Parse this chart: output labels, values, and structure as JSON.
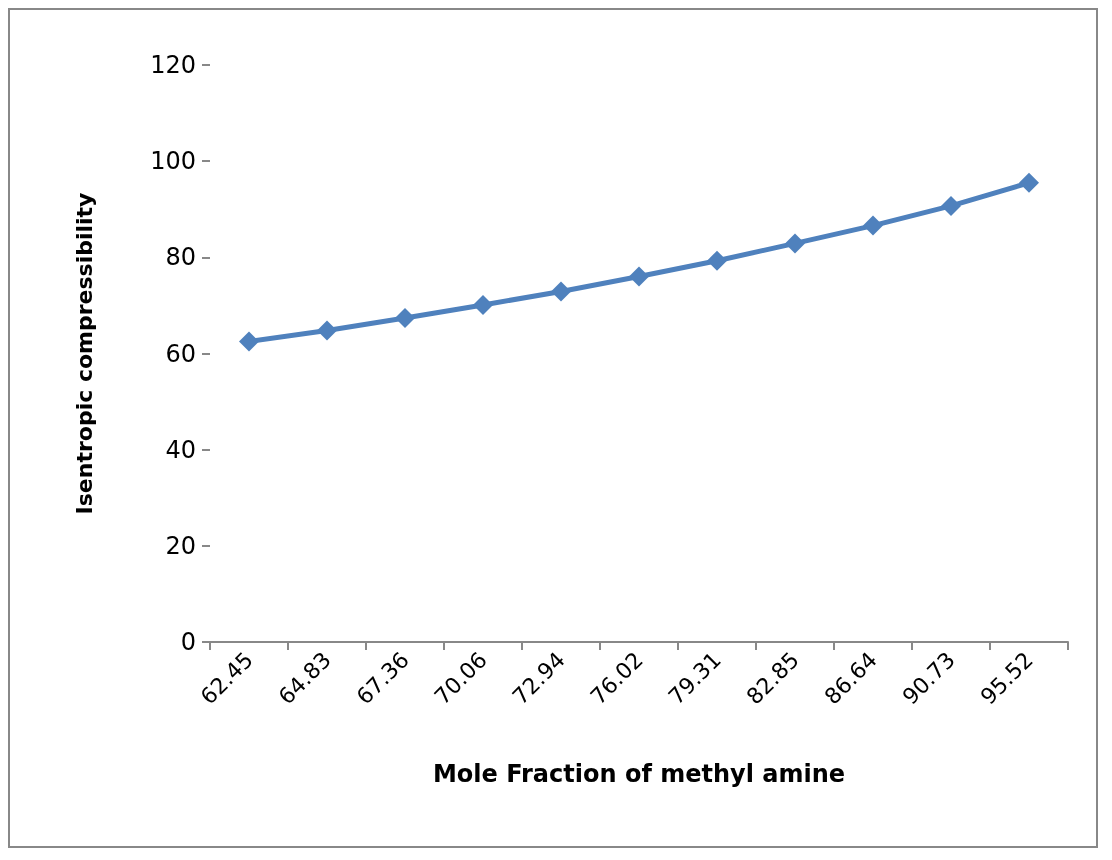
{
  "chart_data": {
    "type": "line",
    "xlabel": "Mole Fraction of methyl amine",
    "ylabel": "Isentropic compressibility",
    "categories": [
      "62.45",
      "64.83",
      "67.36",
      "70.06",
      "72.94",
      "76.02",
      "79.31",
      "82.85",
      "86.64",
      "90.73",
      "95.52"
    ],
    "series": [
      {
        "color": "#4f81bd",
        "values": [
          62.5,
          64.8,
          67.4,
          70.1,
          72.9,
          76.0,
          79.3,
          82.9,
          86.6,
          90.7,
          95.5
        ]
      }
    ],
    "ylim": [
      0,
      120
    ],
    "yticks": [
      0,
      20,
      40,
      60,
      80,
      100,
      120
    ],
    "grid": false,
    "marker": "diamond",
    "line_style": "solid"
  }
}
